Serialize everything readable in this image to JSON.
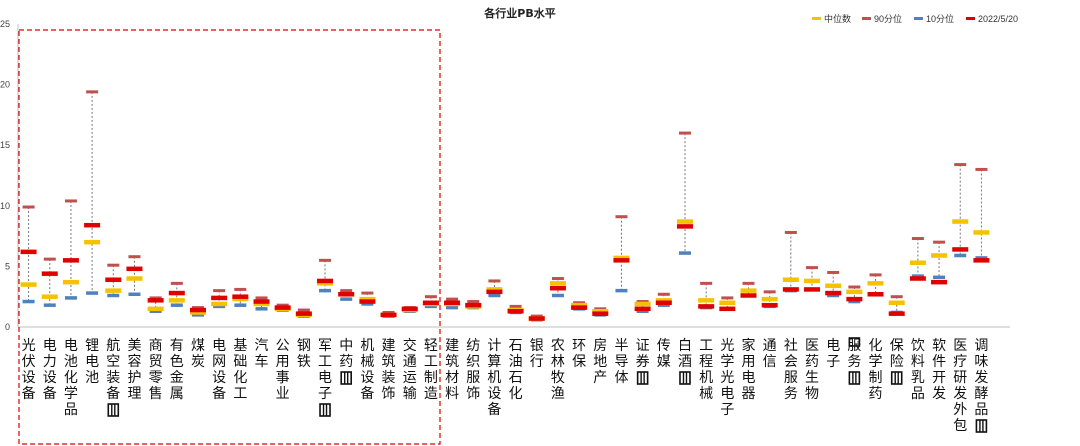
{
  "chart_data": {
    "type": "range",
    "title": "各行业PB水平",
    "ylim": [
      0,
      25
    ],
    "yticks": [
      "0",
      "5",
      "10",
      "15",
      "20",
      "25"
    ],
    "ytick_values": [
      0,
      5,
      10,
      15,
      20,
      25
    ],
    "grid": false,
    "legend_position": "top-right",
    "highlight_box": "dashed-red around first 19 categories",
    "legend": [
      {
        "name": "中位数",
        "color": "#f5c200"
      },
      {
        "name": "90分位",
        "color": "#c0504d"
      },
      {
        "name": "10分位",
        "color": "#4f81bd"
      },
      {
        "name": "2022/5/20",
        "color": "#e00000"
      }
    ],
    "categories": [
      "光伏设备",
      "电力设备",
      "电池化学品",
      "锂电池",
      "航空装备Ⅱ",
      "美容护理",
      "商贸零售",
      "有色金属",
      "煤炭",
      "电网设备",
      "基础化工",
      "汽车",
      "公用事业",
      "钢铁",
      "军工电子Ⅱ",
      "中药Ⅱ",
      "机械设备",
      "建筑装饰",
      "交通运输",
      "轻工制造",
      "建筑材料",
      "纺织服饰",
      "计算机设备",
      "石油石化",
      "银行",
      "农林牧渔",
      "环保",
      "房地产",
      "半导体",
      "证券Ⅱ",
      "传媒",
      "白酒Ⅱ",
      "工程机械",
      "光学光电子",
      "家用电器",
      "通信",
      "社会服务",
      "医药生物",
      "电子",
      "IT服务Ⅱ",
      "化学制药",
      "保险Ⅱ",
      "饮料乳品",
      "软件开发",
      "医疗研发外包",
      "调味发酵品Ⅱ"
    ],
    "labels": [
      "光伏设备",
      "电力设备",
      "电池化学品",
      "锂电池",
      "航空装备",
      "美容护理",
      "商贸零售",
      "有色金属",
      "煤炭",
      "电网设备",
      "基础化工",
      "汽车",
      "公用事业",
      "钢铁",
      "军工电子",
      "中药",
      "机械设备",
      "建筑装饰",
      "交通运输",
      "轻工制造",
      "建筑材料",
      "纺织服饰",
      "计算机设备",
      "石油石化",
      "银行",
      "农林牧渔",
      "环保",
      "房地产",
      "半导体",
      "证券",
      "传媒",
      "白酒",
      "工程机械",
      "光学光电子",
      "家用电器",
      "通信",
      "社会服务",
      "医药生物",
      "电子",
      "服务",
      "化学制药",
      "保险",
      "饮料乳品",
      "软件开发",
      "医疗研发外包",
      "调味发酵品"
    ],
    "series": [
      {
        "name": "90分位",
        "values": [
          9.9,
          5.6,
          10.4,
          19.4,
          5.1,
          5.8,
          2.4,
          3.6,
          1.6,
          3.0,
          3.1,
          2.4,
          1.8,
          1.4,
          5.5,
          3.0,
          2.8,
          1.2,
          1.6,
          2.5,
          2.3,
          2.1,
          3.8,
          1.7,
          0.9,
          4.0,
          2.0,
          1.5,
          9.1,
          2.1,
          2.7,
          16.0,
          3.6,
          2.4,
          3.6,
          2.9,
          7.8,
          4.9,
          4.5,
          3.3,
          4.3,
          2.5,
          7.3,
          7.0,
          13.4,
          13.0
        ]
      },
      {
        "name": "中位数",
        "values": [
          3.5,
          2.5,
          3.7,
          7.0,
          3.0,
          4.0,
          1.5,
          2.2,
          1.2,
          1.9,
          2.3,
          1.9,
          1.5,
          1.0,
          3.6,
          2.7,
          2.3,
          1.0,
          1.4,
          1.9,
          1.9,
          1.7,
          3.1,
          1.4,
          0.7,
          3.6,
          1.8,
          1.3,
          5.7,
          1.9,
          2.2,
          8.7,
          2.2,
          2.0,
          3.0,
          2.3,
          3.9,
          3.8,
          3.4,
          2.9,
          3.6,
          2.0,
          5.3,
          5.9,
          8.7,
          7.8
        ]
      },
      {
        "name": "10分位",
        "values": [
          2.1,
          1.8,
          2.4,
          2.8,
          2.6,
          2.7,
          1.3,
          1.8,
          1.0,
          1.7,
          1.8,
          1.5,
          1.4,
          0.9,
          3.0,
          2.3,
          1.9,
          0.9,
          1.3,
          1.7,
          1.6,
          1.6,
          2.6,
          1.2,
          0.6,
          2.6,
          1.5,
          1.0,
          3.0,
          1.3,
          1.8,
          6.1,
          1.6,
          1.5,
          2.6,
          1.7,
          3.0,
          3.1,
          2.6,
          2.1,
          2.7,
          1.2,
          4.2,
          4.1,
          5.9,
          5.7
        ]
      },
      {
        "name": "2022/5/20",
        "values": [
          6.2,
          4.4,
          5.5,
          8.4,
          3.9,
          4.8,
          2.2,
          2.8,
          1.4,
          2.4,
          2.5,
          2.1,
          1.6,
          1.1,
          3.8,
          2.7,
          2.1,
          1.0,
          1.5,
          2.0,
          2.0,
          1.8,
          2.9,
          1.3,
          0.7,
          3.2,
          1.6,
          1.1,
          5.5,
          1.5,
          2.0,
          8.3,
          1.7,
          1.5,
          2.6,
          1.8,
          3.1,
          3.1,
          2.8,
          2.3,
          2.7,
          1.1,
          4.0,
          3.7,
          6.4,
          5.5
        ]
      }
    ]
  }
}
